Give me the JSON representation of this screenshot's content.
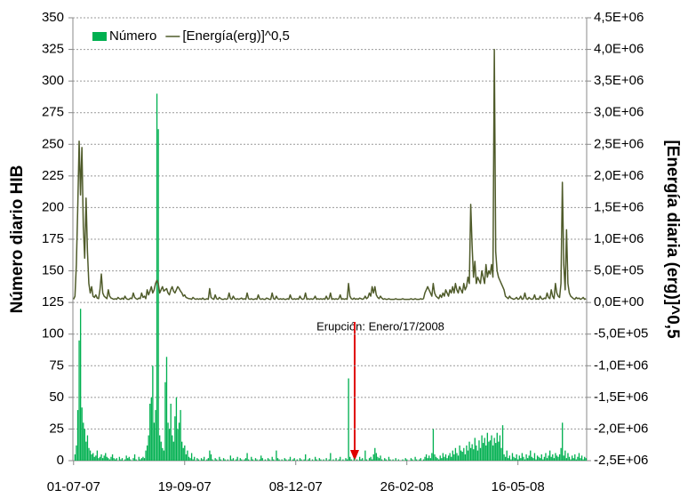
{
  "chart_data": {
    "type": "bar_line",
    "legend": "top-left",
    "grid": true,
    "ylabel": "Número diario HIB",
    "y2label": "[Energía diaria (erg)]^0,5",
    "annotation": "Erupción: Enero/17/2008",
    "ylim": [
      0,
      350
    ],
    "yticks": [
      0,
      25,
      50,
      75,
      100,
      125,
      150,
      175,
      200,
      225,
      250,
      275,
      300,
      325,
      350
    ],
    "y2lim": [
      -2500000,
      4500000
    ],
    "y2ticks": [
      {
        "value": -2500000,
        "label": "-2,5E+06"
      },
      {
        "value": -2000000,
        "label": "-2,0E+06"
      },
      {
        "value": -1500000,
        "label": "-1,5E+06"
      },
      {
        "value": -1000000,
        "label": "-1,0E+06"
      },
      {
        "value": -500000,
        "label": "-5,0E+05"
      },
      {
        "value": 0,
        "label": "0,0E+00"
      },
      {
        "value": 500000,
        "label": "5,0E+05"
      },
      {
        "value": 1000000,
        "label": "1,0E+06"
      },
      {
        "value": 1500000,
        "label": "1,5E+06"
      },
      {
        "value": 2000000,
        "label": "2,0E+06"
      },
      {
        "value": 2500000,
        "label": "2,5E+06"
      },
      {
        "value": 3000000,
        "label": "3,0E+06"
      },
      {
        "value": 3500000,
        "label": "3,5E+06"
      },
      {
        "value": 4000000,
        "label": "4,0E+06"
      },
      {
        "value": 4500000,
        "label": "4,5E+06"
      }
    ],
    "categories": [
      "01-07-07",
      null,
      null,
      null,
      null,
      null,
      null,
      null,
      null,
      null,
      null,
      null,
      null,
      null,
      null,
      null,
      null,
      null,
      null,
      null,
      null,
      null,
      null,
      null,
      null,
      null,
      null,
      null,
      null,
      null,
      null,
      null,
      null,
      null,
      null,
      null,
      null,
      null,
      null,
      null,
      null,
      null,
      null,
      null,
      null,
      null,
      null,
      null,
      null,
      null,
      null,
      null,
      null,
      null,
      null,
      null,
      null,
      null,
      null,
      null,
      null,
      null,
      null,
      null,
      null,
      null,
      null,
      null,
      null,
      null,
      null,
      null,
      null,
      null,
      null,
      null,
      null,
      null,
      null,
      null,
      "19-09-07",
      null,
      null,
      null,
      null,
      null,
      null,
      null,
      null,
      null,
      null,
      null,
      null,
      null,
      null,
      null,
      null,
      null,
      null,
      null,
      null,
      null,
      null,
      null,
      null,
      null,
      null,
      null,
      null,
      null,
      null,
      null,
      null,
      null,
      null,
      null,
      null,
      null,
      null,
      null,
      null,
      null,
      null,
      null,
      null,
      null,
      null,
      null,
      null,
      null,
      null,
      null,
      null,
      null,
      null,
      null,
      null,
      null,
      null,
      null,
      null,
      null,
      null,
      null,
      null,
      null,
      null,
      null,
      null,
      null,
      null,
      null,
      null,
      null,
      null,
      null,
      null,
      null,
      null,
      null,
      "08-12-07",
      null,
      null,
      null,
      null,
      null,
      null,
      null,
      null,
      null,
      null,
      null,
      null,
      null,
      null,
      null,
      null,
      null,
      null,
      null,
      null,
      null,
      null,
      null,
      null,
      null,
      null,
      null,
      null,
      null,
      null,
      null,
      null,
      null,
      null,
      null,
      null,
      null,
      null,
      null,
      null,
      null,
      null,
      null,
      null,
      null,
      null,
      null,
      null,
      null,
      null,
      null,
      null,
      null,
      null,
      null,
      null,
      null,
      null,
      null,
      null,
      null,
      null,
      null,
      null,
      null,
      null,
      null,
      null,
      null,
      null,
      null,
      null,
      null,
      null,
      null,
      null,
      null,
      null,
      null,
      "26-02-08",
      null,
      null,
      null,
      null,
      null,
      null,
      null,
      null,
      null,
      null,
      null,
      null,
      null,
      null,
      null,
      null,
      null,
      null,
      null,
      null,
      null,
      null,
      null,
      null,
      null,
      null,
      null,
      null,
      null,
      null,
      null,
      null,
      null,
      null,
      null,
      null,
      null,
      null,
      null,
      null,
      null,
      null,
      null,
      null,
      null,
      null,
      null,
      null,
      null,
      null,
      null,
      null,
      null,
      null,
      null,
      null,
      null,
      null,
      null,
      null,
      null,
      null,
      null,
      null,
      null,
      null,
      null,
      null,
      null,
      null,
      null,
      null,
      null,
      null,
      null,
      null,
      null,
      null,
      null,
      "16-05-08",
      null,
      null,
      null,
      null,
      null,
      null,
      null,
      null,
      null,
      null,
      null,
      null,
      null,
      null,
      null,
      null,
      null,
      null,
      null,
      null,
      null,
      null,
      null,
      null,
      null,
      null,
      null,
      null,
      null,
      null,
      null,
      null,
      null,
      null,
      null,
      null,
      null,
      null,
      null,
      null,
      null,
      null,
      null,
      null,
      null,
      null,
      null,
      null,
      null
    ],
    "series": [
      {
        "name": "Número",
        "type": "bar",
        "color": "#00b050",
        "values": [
          0,
          5,
          12,
          40,
          95,
          120,
          42,
          30,
          25,
          15,
          20,
          10,
          8,
          5,
          6,
          3,
          4,
          8,
          2,
          3,
          5,
          2,
          4,
          6,
          3,
          2,
          1,
          3,
          5,
          2,
          1,
          2,
          0,
          3,
          1,
          2,
          0,
          1,
          4,
          2,
          3,
          1,
          0,
          2,
          5,
          1,
          0,
          3,
          1,
          2,
          3,
          2,
          8,
          12,
          20,
          45,
          50,
          75,
          30,
          40,
          290,
          262,
          20,
          15,
          10,
          8,
          62,
          82,
          30,
          25,
          45,
          20,
          15,
          35,
          50,
          25,
          30,
          40,
          15,
          10,
          12,
          5,
          8,
          3,
          2,
          6,
          1,
          3,
          0,
          2,
          1,
          0,
          2,
          1,
          3,
          0,
          1,
          2,
          8,
          5,
          1,
          0,
          2,
          1,
          0,
          3,
          1,
          0,
          2,
          1,
          0,
          1,
          0,
          4,
          1,
          2,
          0,
          1,
          3,
          0,
          2,
          1,
          0,
          1,
          2,
          6,
          1,
          0,
          3,
          1,
          0,
          2,
          1,
          0,
          1,
          4,
          2,
          0,
          1,
          0,
          2,
          1,
          0,
          3,
          1,
          0,
          8,
          2,
          1,
          0,
          1,
          0,
          2,
          1,
          0,
          1,
          3,
          0,
          1,
          2,
          0,
          1,
          0,
          2,
          1,
          0,
          1,
          5,
          0,
          1,
          2,
          0,
          1,
          0,
          3,
          1,
          0,
          2,
          1,
          0,
          1,
          0,
          2,
          0,
          1,
          6,
          0,
          1,
          0,
          2,
          0,
          1,
          3,
          0,
          1,
          0,
          2,
          1,
          65,
          3,
          1,
          0,
          2,
          0,
          1,
          0,
          3,
          1,
          2,
          0,
          8,
          1,
          0,
          2,
          3,
          1,
          5,
          10,
          6,
          3,
          2,
          4,
          1,
          0,
          2,
          1,
          0,
          3,
          1,
          0,
          1,
          0,
          2,
          0,
          1,
          0,
          0,
          1,
          0,
          2,
          1,
          0,
          0,
          2,
          1,
          0,
          3,
          1,
          0,
          1,
          2,
          0,
          1,
          3,
          5,
          2,
          4,
          2,
          6,
          25,
          5,
          3,
          2,
          1,
          4,
          2,
          6,
          3,
          5,
          2,
          4,
          6,
          3,
          8,
          5,
          10,
          6,
          4,
          12,
          8,
          7,
          10,
          5,
          12,
          8,
          15,
          10,
          13,
          9,
          18,
          12,
          8,
          16,
          10,
          20,
          14,
          18,
          12,
          22,
          15,
          16,
          20,
          12,
          18,
          14,
          22,
          15,
          20,
          10,
          28,
          5,
          3,
          8,
          2,
          4,
          1,
          6,
          3,
          2,
          5,
          1,
          4,
          2,
          6,
          3,
          1,
          5,
          2,
          4,
          8,
          3,
          2,
          6,
          1,
          4,
          3,
          2,
          5,
          1,
          3,
          6,
          2,
          4,
          8,
          3,
          5,
          2,
          6,
          4,
          3,
          5,
          10,
          30,
          4,
          8,
          2,
          6,
          3,
          1,
          4,
          2,
          5,
          1,
          3,
          6,
          2,
          4,
          1,
          3,
          2
        ]
      },
      {
        "name": "[Energía(erg)]^0,5",
        "type": "line",
        "axis": "y2",
        "color": "#4f5b2a",
        "values": [
          50000,
          100000,
          600000,
          1500000,
          2550000,
          1700000,
          2450000,
          1200000,
          700000,
          1650000,
          800000,
          300000,
          150000,
          250000,
          100000,
          80000,
          120000,
          70000,
          60000,
          200000,
          450000,
          150000,
          100000,
          80000,
          60000,
          200000,
          100000,
          70000,
          60000,
          50000,
          60000,
          50000,
          80000,
          60000,
          50000,
          70000,
          50000,
          100000,
          60000,
          50000,
          50000,
          70000,
          60000,
          150000,
          80000,
          60000,
          50000,
          70000,
          60000,
          150000,
          80000,
          100000,
          60000,
          200000,
          120000,
          180000,
          250000,
          150000,
          200000,
          300000,
          350000,
          300000,
          150000,
          200000,
          250000,
          180000,
          200000,
          220000,
          150000,
          120000,
          200000,
          250000,
          180000,
          150000,
          200000,
          250000,
          220000,
          180000,
          150000,
          100000,
          120000,
          80000,
          70000,
          60000,
          60000,
          50000,
          80000,
          60000,
          50000,
          60000,
          50000,
          60000,
          50000,
          70000,
          50000,
          50000,
          60000,
          50000,
          220000,
          80000,
          60000,
          50000,
          120000,
          60000,
          50000,
          80000,
          60000,
          50000,
          50000,
          60000,
          50000,
          60000,
          150000,
          60000,
          50000,
          100000,
          60000,
          50000,
          60000,
          50000,
          60000,
          70000,
          50000,
          60000,
          50000,
          150000,
          60000,
          50000,
          60000,
          50000,
          50000,
          60000,
          50000,
          120000,
          60000,
          50000,
          60000,
          50000,
          50000,
          70000,
          60000,
          50000,
          50000,
          150000,
          60000,
          50000,
          100000,
          60000,
          50000,
          60000,
          50000,
          60000,
          50000,
          50000,
          60000,
          50000,
          120000,
          60000,
          50000,
          60000,
          50000,
          60000,
          50000,
          100000,
          60000,
          50000,
          60000,
          150000,
          50000,
          60000,
          50000,
          60000,
          50000,
          60000,
          100000,
          50000,
          60000,
          50000,
          60000,
          50000,
          60000,
          50000,
          100000,
          50000,
          60000,
          150000,
          50000,
          60000,
          50000,
          60000,
          50000,
          60000,
          120000,
          50000,
          60000,
          50000,
          60000,
          50000,
          300000,
          100000,
          60000,
          50000,
          70000,
          50000,
          60000,
          50000,
          70000,
          60000,
          50000,
          60000,
          100000,
          60000,
          80000,
          150000,
          100000,
          250000,
          150000,
          250000,
          120000,
          80000,
          60000,
          100000,
          70000,
          50000,
          60000,
          50000,
          50000,
          60000,
          50000,
          50000,
          50000,
          50000,
          60000,
          50000,
          50000,
          50000,
          50000,
          60000,
          50000,
          50000,
          50000,
          50000,
          50000,
          60000,
          50000,
          50000,
          60000,
          50000,
          50000,
          50000,
          60000,
          50000,
          60000,
          150000,
          200000,
          250000,
          200000,
          150000,
          100000,
          300000,
          150000,
          100000,
          80000,
          60000,
          120000,
          80000,
          150000,
          100000,
          200000,
          150000,
          100000,
          200000,
          150000,
          250000,
          150000,
          300000,
          200000,
          150000,
          250000,
          200000,
          150000,
          300000,
          200000,
          250000,
          400000,
          300000,
          1550000,
          900000,
          400000,
          650000,
          300000,
          400000,
          350000,
          300000,
          500000,
          400000,
          300000,
          600000,
          400000,
          500000,
          450000,
          600000,
          400000,
          4000000,
          800000,
          500000,
          400000,
          350000,
          300000,
          250000,
          200000,
          100000,
          80000,
          60000,
          100000,
          70000,
          60000,
          50000,
          60000,
          80000,
          50000,
          60000,
          100000,
          50000,
          60000,
          150000,
          60000,
          50000,
          80000,
          60000,
          50000,
          60000,
          120000,
          50000,
          60000,
          50000,
          100000,
          60000,
          50000,
          70000,
          60000,
          150000,
          80000,
          60000,
          200000,
          100000,
          60000,
          300000,
          150000,
          100000,
          80000,
          300000,
          1900000,
          600000,
          200000,
          1150000,
          300000,
          150000,
          100000,
          80000,
          60000,
          50000,
          80000,
          60000,
          70000,
          50000,
          60000,
          80000,
          50000,
          60000
        ]
      }
    ]
  }
}
